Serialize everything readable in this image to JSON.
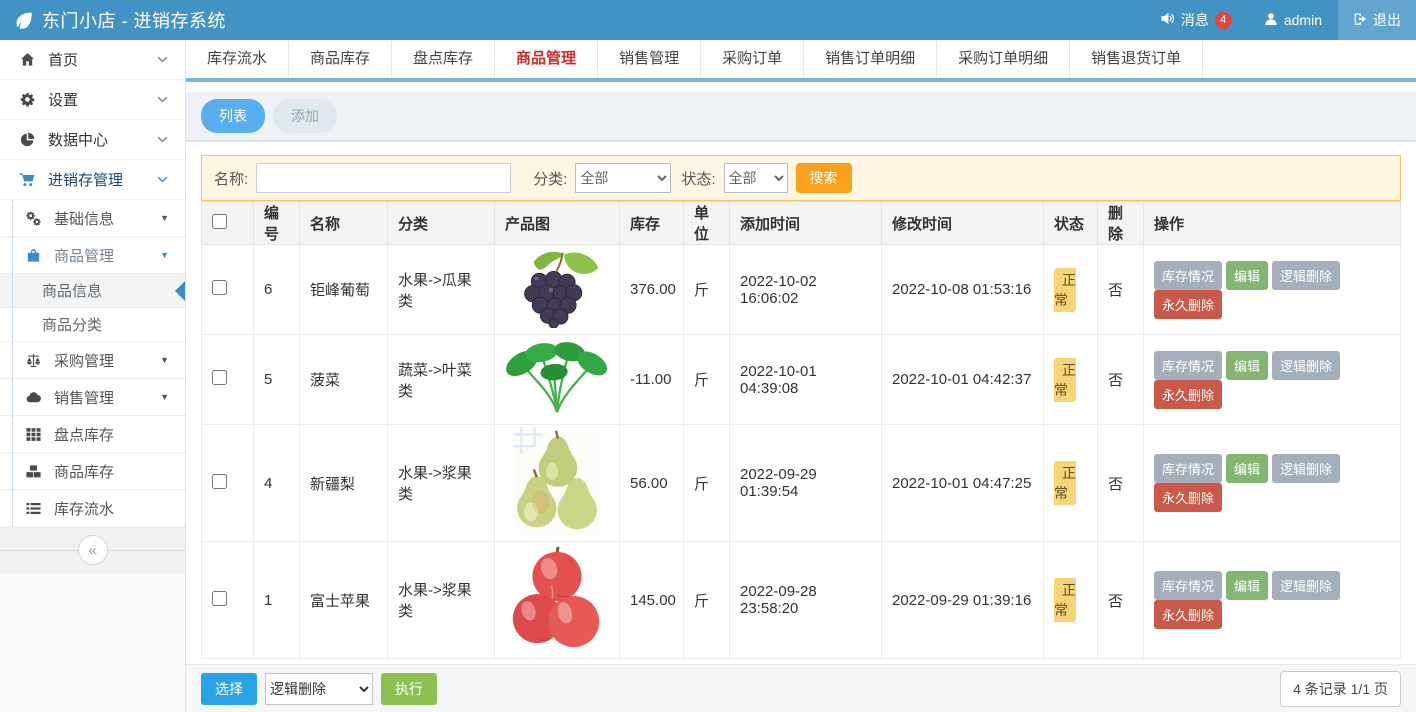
{
  "header": {
    "title": "东门小店 - 进销存系统",
    "messages_label": "消息",
    "messages_count": "4",
    "username": "admin",
    "logout_label": "退出"
  },
  "tabs": {
    "active_index": 3,
    "items": [
      "库存流水",
      "商品库存",
      "盘点库存",
      "商品管理",
      "销售管理",
      "采购订单",
      "销售订单明细",
      "采购订单明细",
      "销售退货订单"
    ]
  },
  "sidebar": {
    "items": [
      {
        "label": "首页",
        "icon": "home-icon",
        "level": 1,
        "expand": "chevron"
      },
      {
        "label": "设置",
        "icon": "gear-icon",
        "level": 1,
        "expand": "chevron"
      },
      {
        "label": "数据中心",
        "icon": "pie-chart-icon",
        "level": 1,
        "expand": "chevron"
      },
      {
        "label": "进销存管理",
        "icon": "cart-icon",
        "level": 1,
        "expand": "chevron",
        "highlight": true
      },
      {
        "label": "基础信息",
        "icon": "cogs-icon",
        "level": 2,
        "expand": "caret"
      },
      {
        "label": "商品管理",
        "icon": "bag-icon",
        "level": 2,
        "expand": "caret",
        "highlight": true
      },
      {
        "label": "商品信息",
        "level": 3,
        "active": true
      },
      {
        "label": "商品分类",
        "level": 3
      },
      {
        "label": "采购管理",
        "icon": "balance-icon",
        "level": 2,
        "expand": "caret"
      },
      {
        "label": "销售管理",
        "icon": "cloud-icon",
        "level": 2,
        "expand": "caret"
      },
      {
        "label": "盘点库存",
        "icon": "grid-icon",
        "level": 2
      },
      {
        "label": "商品库存",
        "icon": "cubes-icon",
        "level": 2
      },
      {
        "label": "库存流水",
        "icon": "list-icon",
        "level": 2
      }
    ],
    "collapse_glyph": "«"
  },
  "toolbar": {
    "list_label": "列表",
    "add_label": "添加"
  },
  "search": {
    "name_label": "名称:",
    "name_value": "",
    "category_label": "分类:",
    "category_value": "全部",
    "status_label": "状态:",
    "status_value": "全部",
    "button_label": "搜索"
  },
  "table": {
    "headers": [
      "编号",
      "名称",
      "分类",
      "产品图",
      "库存",
      "单位",
      "添加时间",
      "修改时间",
      "状态",
      "删除",
      "操作"
    ],
    "action_labels": [
      "库存情况",
      "编辑",
      "逻辑删除",
      "永久删除"
    ],
    "rows": [
      {
        "id": "6",
        "name": "钜峰葡萄",
        "category": "水果->瓜果类",
        "image": "grapes-photo",
        "stock": "376.00",
        "unit": "斤",
        "added": "2022-10-02 16:06:02",
        "modified": "2022-10-08 01:53:16",
        "status": "正常",
        "deleted": "否"
      },
      {
        "id": "5",
        "name": "菠菜",
        "category": "蔬菜->叶菜类",
        "image": "spinach-photo",
        "stock": "-11.00",
        "unit": "斤",
        "added": "2022-10-01 04:39:08",
        "modified": "2022-10-01 04:42:37",
        "status": "正常",
        "deleted": "否"
      },
      {
        "id": "4",
        "name": "新疆梨",
        "category": "水果->浆果类",
        "image": "pears-photo",
        "stock": "56.00",
        "unit": "斤",
        "added": "2022-09-29 01:39:54",
        "modified": "2022-10-01 04:47:25",
        "status": "正常",
        "deleted": "否"
      },
      {
        "id": "1",
        "name": "富士苹果",
        "category": "水果->浆果类",
        "image": "apples-photo",
        "stock": "145.00",
        "unit": "斤",
        "added": "2022-09-28 23:58:20",
        "modified": "2022-09-29 01:39:16",
        "status": "正常",
        "deleted": "否"
      }
    ]
  },
  "footer": {
    "select_label": "选择",
    "bulk_action_value": "逻辑删除",
    "execute_label": "执行",
    "pagination": "4 条记录 1/1 页"
  },
  "colors": {
    "header_blue": "#4392c4",
    "tab_active_red": "#c9302c",
    "search_panel_border": "#f9c161",
    "search_button_orange": "#f9a11b",
    "status_normal_bg": "#f8d478",
    "action_gray": "#a5afbb",
    "action_green": "#83b573",
    "action_red": "#c95a49",
    "select_button_blue": "#29a3e3",
    "execute_button_green": "#8cc152"
  }
}
